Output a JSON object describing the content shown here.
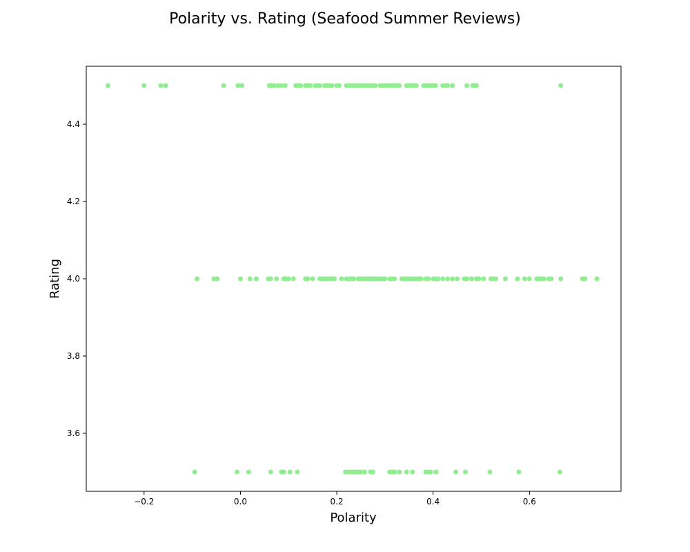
{
  "chart_data": {
    "type": "scatter",
    "title": "Polarity vs. Rating (Seafood Summer Reviews)",
    "xlabel": "Polarity",
    "ylabel": "Rating",
    "xlim": [
      -0.32,
      0.79
    ],
    "ylim": [
      3.45,
      4.55
    ],
    "xticks": [
      -0.2,
      0.0,
      0.2,
      0.4,
      0.6
    ],
    "xtick_labels": [
      "−0.2",
      "0.0",
      "0.2",
      "0.4",
      "0.6"
    ],
    "yticks": [
      3.6,
      3.8,
      4.0,
      4.2,
      4.4
    ],
    "ytick_labels": [
      "3.6",
      "3.8",
      "4.0",
      "4.2",
      "4.4"
    ],
    "grid": false,
    "marker_color": "#90ee90",
    "series": [
      {
        "points": [
          {
            "y": 4.5,
            "x": [
              -0.275,
              -0.2,
              -0.165,
              -0.155,
              -0.035,
              -0.005,
              0.003,
              0.06,
              0.065,
              0.07,
              0.078,
              0.085,
              0.093,
              0.115,
              0.12,
              0.125,
              0.135,
              0.14,
              0.145,
              0.155,
              0.16,
              0.165,
              0.175,
              0.18,
              0.185,
              0.19,
              0.2,
              0.205,
              0.22,
              0.225,
              0.23,
              0.235,
              0.24,
              0.245,
              0.25,
              0.255,
              0.26,
              0.265,
              0.27,
              0.275,
              0.28,
              0.29,
              0.295,
              0.3,
              0.305,
              0.31,
              0.315,
              0.32,
              0.325,
              0.33,
              0.345,
              0.35,
              0.355,
              0.36,
              0.365,
              0.38,
              0.385,
              0.39,
              0.395,
              0.4,
              0.405,
              0.42,
              0.425,
              0.43,
              0.44,
              0.47,
              0.482,
              0.487,
              0.49,
              0.665
            ]
          },
          {
            "y": 4.0,
            "x": [
              -0.09,
              -0.055,
              -0.048,
              0.0,
              0.02,
              0.033,
              0.058,
              0.063,
              0.075,
              0.09,
              0.095,
              0.1,
              0.11,
              0.135,
              0.14,
              0.15,
              0.165,
              0.17,
              0.175,
              0.18,
              0.185,
              0.19,
              0.195,
              0.21,
              0.22,
              0.225,
              0.23,
              0.235,
              0.245,
              0.25,
              0.255,
              0.26,
              0.265,
              0.27,
              0.275,
              0.28,
              0.285,
              0.29,
              0.295,
              0.3,
              0.31,
              0.315,
              0.32,
              0.335,
              0.34,
              0.345,
              0.35,
              0.355,
              0.36,
              0.365,
              0.37,
              0.375,
              0.385,
              0.39,
              0.4,
              0.405,
              0.41,
              0.42,
              0.43,
              0.44,
              0.45,
              0.465,
              0.47,
              0.48,
              0.49,
              0.495,
              0.505,
              0.52,
              0.525,
              0.53,
              0.55,
              0.575,
              0.59,
              0.6,
              0.615,
              0.62,
              0.625,
              0.63,
              0.64,
              0.645,
              0.665,
              0.71,
              0.715,
              0.74
            ]
          },
          {
            "y": 3.5,
            "x": [
              -0.095,
              -0.007,
              0.017,
              0.063,
              0.085,
              0.09,
              0.103,
              0.118,
              0.218,
              0.225,
              0.23,
              0.235,
              0.24,
              0.245,
              0.25,
              0.258,
              0.27,
              0.275,
              0.31,
              0.315,
              0.32,
              0.33,
              0.345,
              0.357,
              0.385,
              0.39,
              0.395,
              0.406,
              0.447,
              0.467,
              0.518,
              0.578,
              0.663
            ]
          }
        ]
      }
    ]
  }
}
